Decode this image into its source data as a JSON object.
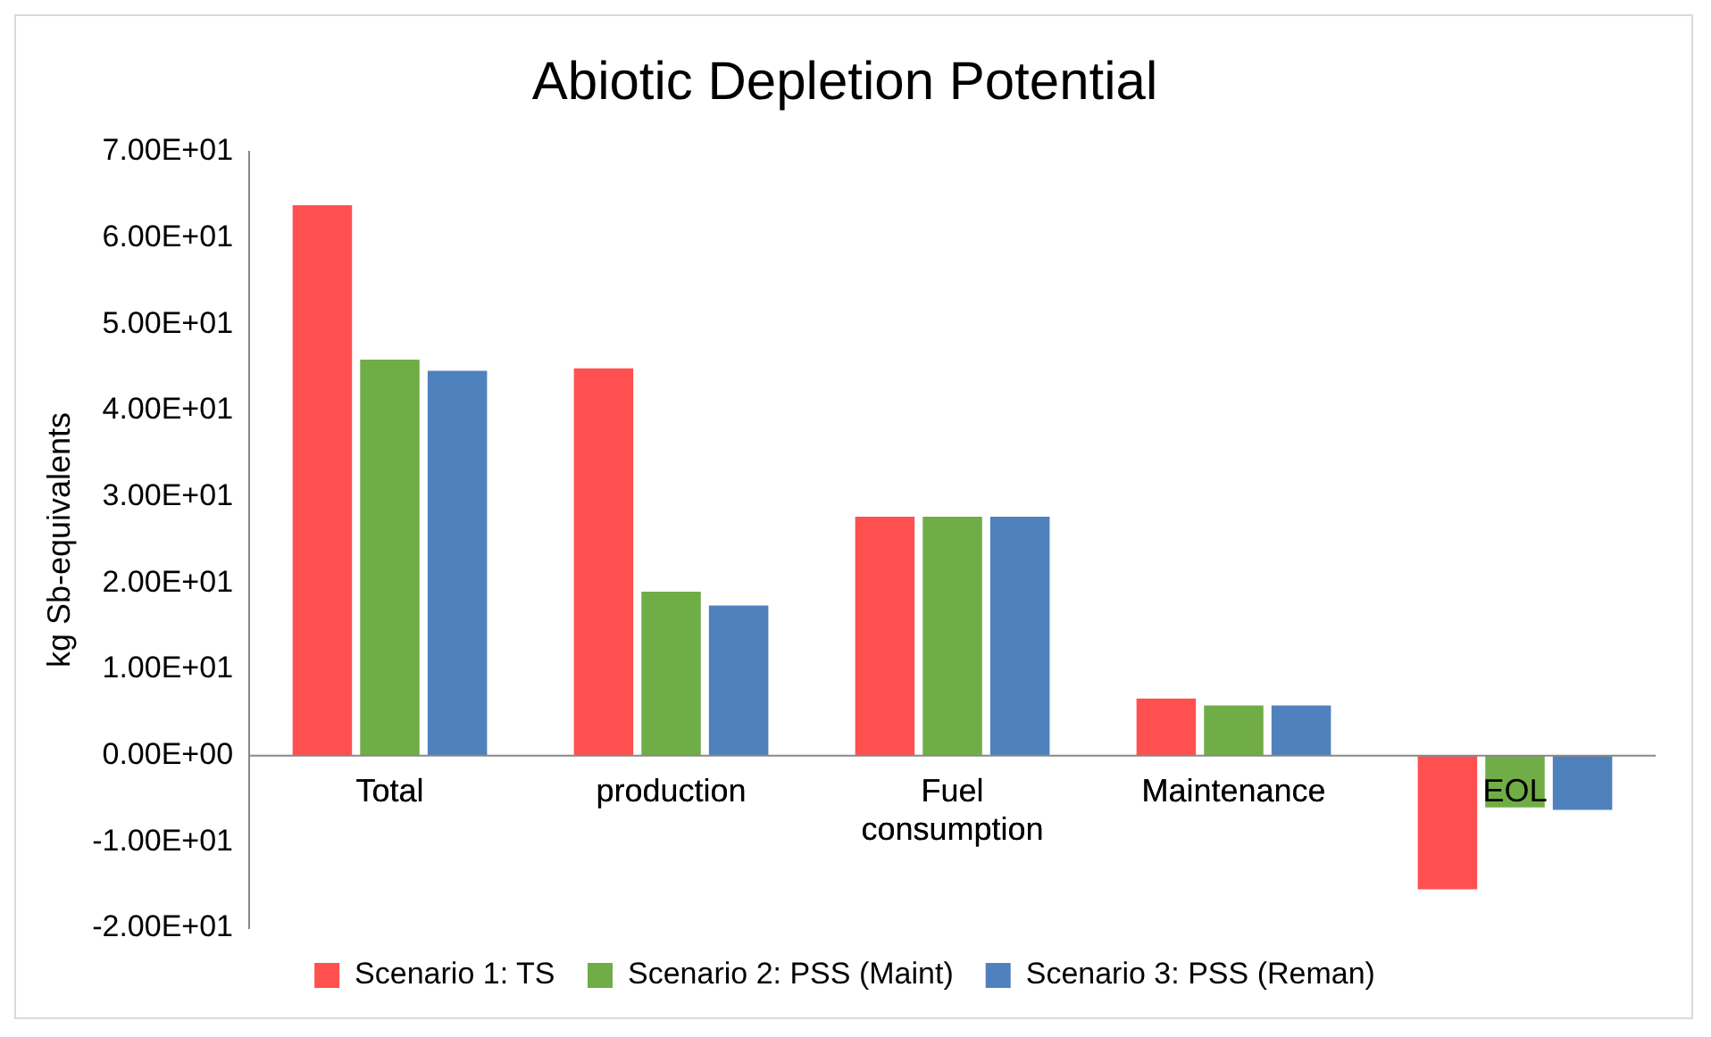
{
  "chart_data": {
    "type": "bar",
    "title": "Abiotic Depletion Potential",
    "ylabel": "kg Sb-equivalents",
    "categories": [
      "Total",
      "production",
      "Fuel consumption",
      "Maintenance",
      "EOL"
    ],
    "series": [
      {
        "name": "Scenario 1: TS",
        "color": "#ff5050",
        "values": [
          63.8,
          44.9,
          27.7,
          6.6,
          -15.5
        ]
      },
      {
        "name": "Scenario 2: PSS (Maint)",
        "color": "#70ad47",
        "values": [
          45.9,
          19.0,
          27.7,
          5.8,
          -6.0
        ]
      },
      {
        "name": "Scenario 3: PSS (Reman)",
        "color": "#4f81bd",
        "values": [
          44.6,
          17.4,
          27.7,
          5.8,
          -6.3
        ]
      }
    ],
    "ylim": [
      -20,
      70
    ],
    "yticks": [
      {
        "value": -20,
        "label": "-2.00E+01"
      },
      {
        "value": -10,
        "label": "-1.00E+01"
      },
      {
        "value": 0,
        "label": "0.00E+00"
      },
      {
        "value": 10,
        "label": "1.00E+01"
      },
      {
        "value": 20,
        "label": "2.00E+01"
      },
      {
        "value": 30,
        "label": "3.00E+01"
      },
      {
        "value": 40,
        "label": "4.00E+01"
      },
      {
        "value": 50,
        "label": "5.00E+01"
      },
      {
        "value": 60,
        "label": "6.00E+01"
      },
      {
        "value": 70,
        "label": "7.00E+01"
      }
    ],
    "grid": false,
    "legend": "bottom"
  }
}
